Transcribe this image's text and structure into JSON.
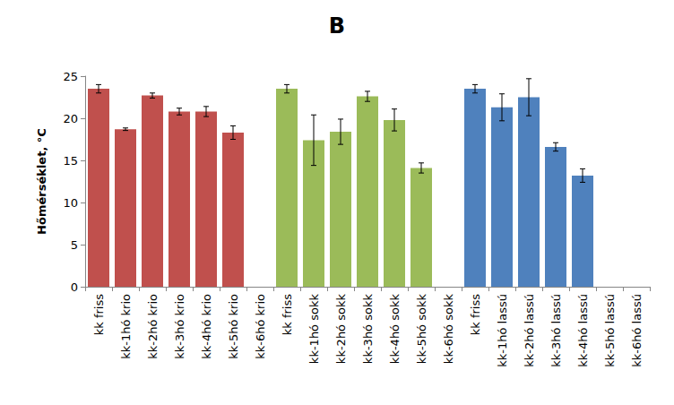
{
  "chart_data": {
    "type": "bar",
    "title": "B",
    "y_label": "Hőmérséklet, °C",
    "categories": [
      "kk friss",
      "kk-1hó krio",
      "kk-2hó krio",
      "kk-3hó krio",
      "kk-4hó krio",
      "kk-5hó krio",
      "kk-6hó krio",
      "kk friss",
      "kk-1hó sokk",
      "kk-2hó sokk",
      "kk-3hó sokk",
      "kk-4hó sokk",
      "kk-5hó sokk",
      "kk-6hó sokk",
      "kk friss",
      "kk-1hó lassú",
      "kk-2hó lassú",
      "kk-3hó lassú",
      "kk-4hó lassú",
      "kk-5hó lassú",
      "kk-6hó lassú"
    ],
    "values": [
      23.5,
      18.7,
      22.7,
      20.8,
      20.8,
      18.3,
      null,
      23.5,
      17.4,
      18.4,
      22.6,
      19.8,
      14.1,
      null,
      23.5,
      21.3,
      22.5,
      16.6,
      13.2,
      null,
      null
    ],
    "errors": [
      0.5,
      0.15,
      0.3,
      0.4,
      0.6,
      0.8,
      null,
      0.5,
      3.0,
      1.5,
      0.6,
      1.3,
      0.6,
      null,
      0.5,
      1.6,
      2.2,
      0.5,
      0.8,
      null,
      null
    ],
    "colors": [
      "#c0504d",
      "#c0504d",
      "#c0504d",
      "#c0504d",
      "#c0504d",
      "#c0504d",
      "#c0504d",
      "#9bbb59",
      "#9bbb59",
      "#9bbb59",
      "#9bbb59",
      "#9bbb59",
      "#9bbb59",
      "#9bbb59",
      "#4f81bd",
      "#4f81bd",
      "#4f81bd",
      "#4f81bd",
      "#4f81bd",
      "#4f81bd",
      "#4f81bd"
    ],
    "ylim": [
      0,
      25
    ],
    "yticks": [
      0,
      5,
      10,
      15,
      20,
      25
    ],
    "grid": false
  }
}
